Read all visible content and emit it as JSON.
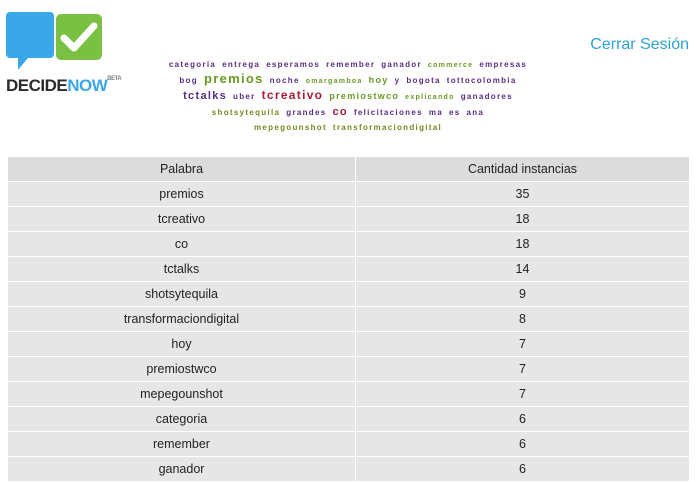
{
  "header": {
    "logo": {
      "decide": "DECIDE",
      "now": "NOW",
      "tm": "BETA"
    },
    "logout_label": "Cerrar Sesión"
  },
  "cloud": {
    "lines": [
      [
        {
          "w": "categoria",
          "c": "purple",
          "s": 8
        },
        {
          "w": "entrega",
          "c": "purple",
          "s": 8
        },
        {
          "w": "esperamos",
          "c": "purple",
          "s": 8
        },
        {
          "w": "remember",
          "c": "purple",
          "s": 8
        },
        {
          "w": "ganador",
          "c": "purple",
          "s": 8
        },
        {
          "w": "commerce",
          "c": "green",
          "s": 7
        },
        {
          "w": "empresas",
          "c": "purple",
          "s": 8
        }
      ],
      [
        {
          "w": "bog",
          "c": "purple",
          "s": 8
        },
        {
          "w": "premios",
          "c": "green",
          "s": 13
        },
        {
          "w": "noche",
          "c": "purple",
          "s": 8
        },
        {
          "w": "omargamboa",
          "c": "green",
          "s": 7
        },
        {
          "w": "hoy",
          "c": "green",
          "s": 9
        },
        {
          "w": "y",
          "c": "purple",
          "s": 8
        },
        {
          "w": "bogota",
          "c": "purple",
          "s": 8
        },
        {
          "w": "tottocolombia",
          "c": "purple",
          "s": 8
        }
      ],
      [
        {
          "w": "tctalks",
          "c": "purple",
          "s": 11
        },
        {
          "w": "uber",
          "c": "purple",
          "s": 8
        },
        {
          "w": "tcreativo",
          "c": "red",
          "s": 12
        },
        {
          "w": "premiostwco",
          "c": "green",
          "s": 9
        },
        {
          "w": "explicando",
          "c": "green",
          "s": 7
        },
        {
          "w": "ganadores",
          "c": "purple",
          "s": 8
        }
      ],
      [
        {
          "w": "shotsytequila",
          "c": "olive",
          "s": 8
        },
        {
          "w": "grandes",
          "c": "purple",
          "s": 8
        },
        {
          "w": "co",
          "c": "red",
          "s": 11
        },
        {
          "w": "felicitaciones",
          "c": "purple",
          "s": 8
        },
        {
          "w": "ma",
          "c": "purple",
          "s": 8
        },
        {
          "w": "es",
          "c": "purple",
          "s": 8
        },
        {
          "w": "ana",
          "c": "purple",
          "s": 8
        }
      ],
      [
        {
          "w": "mepegounshot",
          "c": "olive",
          "s": 8
        },
        {
          "w": "transformaciondigital",
          "c": "olive",
          "s": 8
        }
      ]
    ]
  },
  "table": {
    "headers": [
      "Palabra",
      "Cantidad instancias"
    ],
    "rows": [
      [
        "premios",
        "35"
      ],
      [
        "tcreativo",
        "18"
      ],
      [
        "co",
        "18"
      ],
      [
        "tctalks",
        "14"
      ],
      [
        "shotsytequila",
        "9"
      ],
      [
        "transformaciondigital",
        "8"
      ],
      [
        "hoy",
        "7"
      ],
      [
        "premiostwco",
        "7"
      ],
      [
        "mepegounshot",
        "7"
      ],
      [
        "categoria",
        "6"
      ],
      [
        "remember",
        "6"
      ],
      [
        "ganador",
        "6"
      ]
    ]
  }
}
